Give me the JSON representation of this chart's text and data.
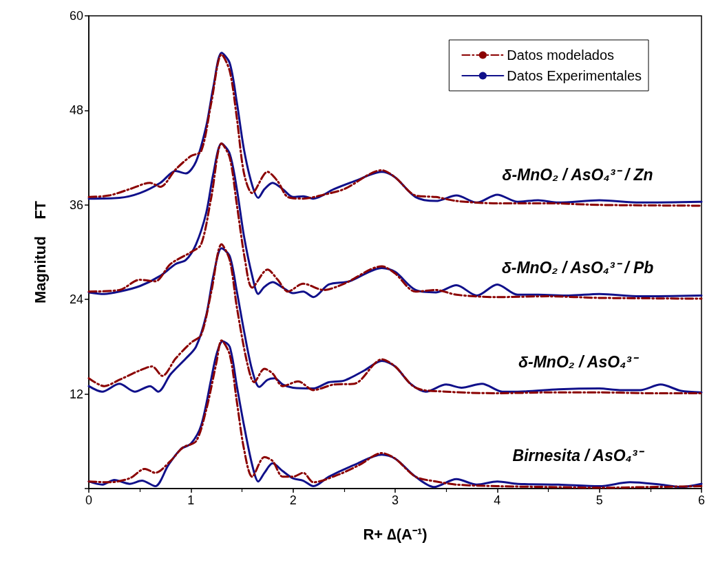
{
  "chart_data": {
    "type": "line",
    "xlabel": "R+ ∆(A⁻¹)",
    "ylabel": "Magnitud    FT",
    "xlim": [
      0,
      6
    ],
    "xticks": [
      0,
      1,
      2,
      3,
      4,
      5,
      6
    ],
    "ylim": [
      0,
      60
    ],
    "yticks": [
      {
        "value": 0,
        "label": null
      },
      12,
      24,
      36,
      48,
      60
    ],
    "legend": "top right",
    "marker": "none",
    "annotations": [
      "δ-MnO₂ / AsO₄³⁻ / Zn",
      "δ-MnO₂ / AsO₄³⁻ / Pb",
      "δ-MnO₂ / AsO₄³⁻",
      "Birnesita / AsO₄³⁻"
    ],
    "series": [
      {
        "name": "Datos modelados",
        "color": "#8b0000",
        "line_style": "dashed",
        "x": [
          0,
          0.2,
          0.4,
          0.6,
          0.7,
          0.85,
          1.0,
          1.1,
          1.2,
          1.3,
          1.38,
          1.45,
          1.52,
          1.6,
          1.75,
          1.85,
          1.95,
          2.1,
          2.3,
          2.5,
          2.87,
          3.0,
          3.2,
          3.4,
          3.6,
          4.0,
          4.5,
          5,
          6
        ],
        "values": [
          37,
          37.2,
          38,
          38.8,
          38.3,
          40.5,
          42.2,
          42.8,
          49,
          55.1,
          53,
          47,
          40,
          37.5,
          40.2,
          39,
          37,
          36.8,
          37.3,
          38,
          40.4,
          39.5,
          37.2,
          37,
          36.5,
          36.2,
          36.2,
          36,
          35.9
        ]
      },
      {
        "name": "Datos Experimentales",
        "color": "#10108a",
        "line_style": "solid",
        "x": [
          0,
          0.3,
          0.5,
          0.7,
          0.85,
          0.95,
          1.05,
          1.15,
          1.22,
          1.3,
          1.38,
          1.45,
          1.52,
          1.6,
          1.66,
          1.72,
          1.8,
          1.9,
          2.0,
          2.1,
          2.2,
          2.4,
          2.6,
          2.87,
          3.0,
          3.2,
          3.4,
          3.6,
          3.8,
          4.0,
          4.2,
          4.4,
          4.6,
          5.0,
          5.4,
          6.0
        ],
        "values": [
          36.8,
          36.9,
          37.5,
          38.8,
          40.3,
          40,
          41.5,
          46,
          51,
          55.3,
          54,
          49,
          43,
          38.5,
          36.9,
          38,
          38.8,
          38,
          37,
          37.1,
          36.8,
          38,
          39,
          40.2,
          39.5,
          37,
          36.5,
          37.2,
          36.3,
          37.3,
          36.4,
          36.6,
          36.3,
          36.6,
          36.3,
          36.4
        ]
      },
      {
        "color": "#8b0000",
        "line_style": "dashed",
        "x": [
          0,
          0.3,
          0.5,
          0.65,
          0.8,
          1.0,
          1.1,
          1.2,
          1.3,
          1.38,
          1.45,
          1.53,
          1.6,
          1.75,
          1.85,
          1.95,
          2.1,
          2.3,
          2.5,
          2.87,
          3.0,
          3.2,
          3.4,
          3.6,
          4.0,
          4.5,
          5,
          6
        ],
        "values": [
          25,
          25.2,
          26.5,
          26.3,
          28.5,
          30,
          31,
          37,
          43.8,
          42,
          36,
          29,
          25.5,
          27.8,
          26.5,
          25,
          26,
          25.2,
          26,
          28.2,
          27.3,
          25,
          25.2,
          24.6,
          24.3,
          24.4,
          24.2,
          24.1
        ]
      },
      {
        "color": "#10108a",
        "line_style": "solid",
        "x": [
          0,
          0.15,
          0.3,
          0.5,
          0.7,
          0.85,
          0.95,
          1.05,
          1.15,
          1.22,
          1.3,
          1.38,
          1.45,
          1.52,
          1.6,
          1.66,
          1.72,
          1.8,
          1.9,
          2.0,
          2.1,
          2.2,
          2.35,
          2.55,
          2.87,
          3.0,
          3.2,
          3.4,
          3.6,
          3.8,
          4.0,
          4.2,
          4.4,
          4.7,
          5,
          5.4,
          6
        ],
        "values": [
          24.9,
          24.7,
          25,
          25.7,
          27,
          28.5,
          29,
          31,
          35,
          40,
          43.8,
          42.5,
          38,
          32,
          27,
          24.7,
          25.6,
          26.2,
          25.5,
          24.8,
          25,
          24.3,
          25.9,
          26.3,
          28,
          27.5,
          25.2,
          24.9,
          25.8,
          24.5,
          25.9,
          24.6,
          24.6,
          24.5,
          24.7,
          24.4,
          24.5
        ]
      },
      {
        "color": "#8b0000",
        "line_style": "dashed",
        "x": [
          0,
          0.15,
          0.3,
          0.5,
          0.62,
          0.72,
          0.85,
          1.0,
          1.1,
          1.2,
          1.3,
          1.38,
          1.45,
          1.55,
          1.62,
          1.72,
          1.8,
          1.9,
          2.05,
          2.2,
          2.4,
          2.6,
          2.87,
          3.0,
          3.2,
          3.5,
          4.0,
          4.5,
          5,
          5.5,
          6
        ],
        "values": [
          14,
          13,
          13.8,
          15,
          15.5,
          14.3,
          16.5,
          18.5,
          19.5,
          25,
          31,
          29,
          23,
          16,
          13.5,
          15.2,
          14.6,
          13,
          13.6,
          12.5,
          13.2,
          13.3,
          16.4,
          15.5,
          12.8,
          12.3,
          12.1,
          12.2,
          12.2,
          12.1,
          12.1
        ]
      },
      {
        "color": "#10108a",
        "line_style": "solid",
        "x": [
          0,
          0.13,
          0.3,
          0.45,
          0.6,
          0.68,
          0.8,
          0.95,
          1.05,
          1.15,
          1.22,
          1.3,
          1.38,
          1.45,
          1.52,
          1.6,
          1.67,
          1.75,
          1.82,
          1.9,
          2.0,
          2.2,
          2.35,
          2.5,
          2.7,
          2.87,
          3.0,
          3.15,
          3.3,
          3.5,
          3.65,
          3.85,
          4.05,
          4.2,
          4.6,
          5,
          5.2,
          5.4,
          5.6,
          5.8,
          6
        ],
        "values": [
          13,
          12.3,
          13.3,
          12.3,
          13,
          12.3,
          14.5,
          16.5,
          18,
          22,
          27,
          30.5,
          29.5,
          25,
          20,
          15,
          12.9,
          13.8,
          14,
          13.2,
          12.8,
          12.7,
          13.5,
          13.7,
          15,
          16.2,
          15.5,
          13.3,
          12.3,
          13.2,
          12.8,
          13.3,
          12.3,
          12.3,
          12.6,
          12.7,
          12.5,
          12.5,
          13.2,
          12.4,
          12.2
        ]
      },
      {
        "color": "#8b0000",
        "line_style": "dashed",
        "x": [
          0,
          0.2,
          0.4,
          0.55,
          0.65,
          0.8,
          0.92,
          1.05,
          1.15,
          1.25,
          1.3,
          1.38,
          1.45,
          1.52,
          1.6,
          1.72,
          1.8,
          1.9,
          2.0,
          2.1,
          2.2,
          2.45,
          2.65,
          2.87,
          3.0,
          3.2,
          3.4,
          3.6,
          4,
          4.5,
          5,
          5.5,
          6
        ],
        "values": [
          0.9,
          0.8,
          1.3,
          2.5,
          2,
          3.5,
          5.2,
          6,
          10,
          16,
          18.8,
          17,
          11,
          5,
          1.5,
          4,
          3.5,
          1.5,
          1.5,
          2,
          0.8,
          1.8,
          3,
          4.5,
          3.8,
          1.5,
          0.9,
          0.5,
          0.3,
          0.2,
          0.1,
          0.2,
          0.3
        ]
      },
      {
        "color": "#10108a",
        "line_style": "solid",
        "x": [
          0,
          0.13,
          0.25,
          0.4,
          0.52,
          0.65,
          0.78,
          0.9,
          1.0,
          1.1,
          1.2,
          1.25,
          1.31,
          1.38,
          1.45,
          1.52,
          1.6,
          1.66,
          1.72,
          1.8,
          1.9,
          2.0,
          2.1,
          2.2,
          2.35,
          2.6,
          2.87,
          3.0,
          3.2,
          3.38,
          3.6,
          3.8,
          4.0,
          4.2,
          4.6,
          5.0,
          5.3,
          5.6,
          5.8,
          6
        ],
        "values": [
          0.9,
          0.5,
          1.1,
          0.6,
          1,
          0.3,
          3,
          5,
          5.7,
          8,
          14,
          17,
          18.7,
          18,
          13,
          8,
          3,
          0.9,
          2,
          3.2,
          2.2,
          1.3,
          1,
          0.3,
          1.5,
          3,
          4.3,
          3.8,
          1.5,
          0.2,
          1.2,
          0.5,
          0.9,
          0.6,
          0.5,
          0.3,
          0.8,
          0.5,
          0.2,
          0.6
        ]
      }
    ]
  }
}
